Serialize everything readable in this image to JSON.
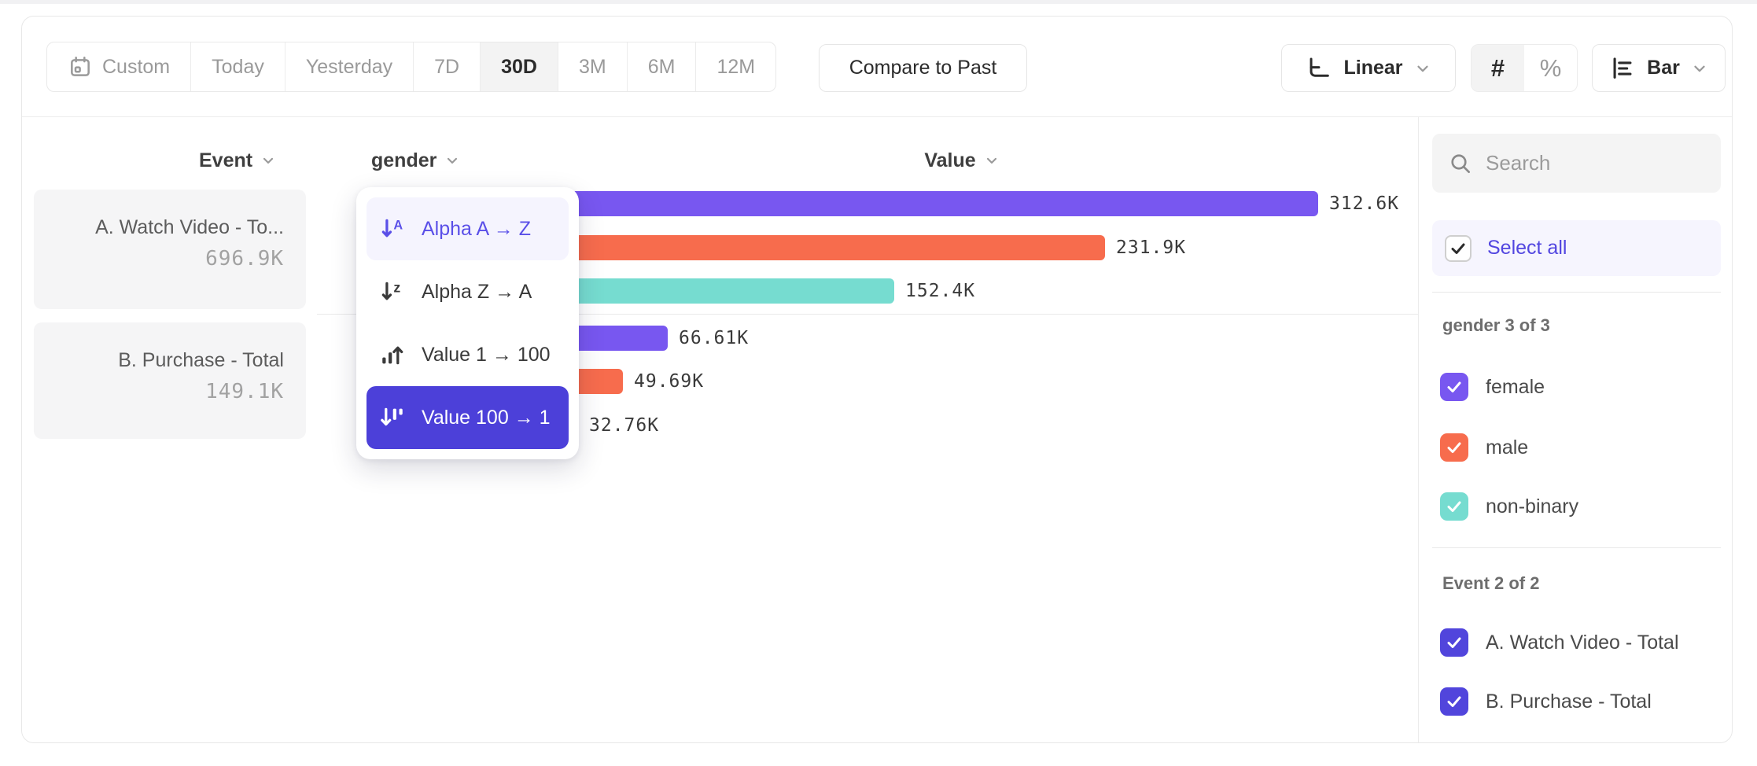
{
  "toolbar": {
    "date_ranges": [
      {
        "label": "Custom",
        "icon": "calendar-icon",
        "selected": false
      },
      {
        "label": "Today",
        "selected": false
      },
      {
        "label": "Yesterday",
        "selected": false
      },
      {
        "label": "7D",
        "selected": false
      },
      {
        "label": "30D",
        "selected": true
      },
      {
        "label": "3M",
        "selected": false
      },
      {
        "label": "6M",
        "selected": false
      },
      {
        "label": "12M",
        "selected": false
      }
    ],
    "compare_label": "Compare to Past",
    "scale": {
      "label": "Linear",
      "icon": "linear-axis-icon"
    },
    "number_format": {
      "options": [
        "#",
        "%"
      ],
      "selected": "#"
    },
    "chart_type": {
      "label": "Bar",
      "icon": "bar-chart-icon"
    }
  },
  "columns": {
    "event": "Event",
    "breakdown": "gender",
    "value": "Value"
  },
  "events_panel": [
    {
      "title": "A. Watch Video - To...",
      "total": "696.9K"
    },
    {
      "title": "B. Purchase - Total",
      "total": "149.1K"
    }
  ],
  "sort_menu": {
    "items": [
      {
        "label": "Alpha A → Z",
        "icon": "sort-alpha-asc-icon",
        "state": "hover"
      },
      {
        "label": "Alpha Z → A",
        "icon": "sort-alpha-desc-icon",
        "state": "normal"
      },
      {
        "label": "Value 1 → 100",
        "icon": "sort-value-asc-icon",
        "state": "normal"
      },
      {
        "label": "Value 100 → 1",
        "icon": "sort-value-desc-icon",
        "state": "selected"
      }
    ]
  },
  "chart_data": {
    "type": "bar",
    "orientation": "horizontal",
    "group_by": "gender",
    "value_axis": "Value",
    "max_value_k": 312.6,
    "groups": [
      {
        "event": "A. Watch Video - Total",
        "total_label": "696.9K",
        "bars": [
          {
            "segment": "female",
            "color": "purple",
            "value_k": 312.6,
            "label": "312.6K"
          },
          {
            "segment": "male",
            "color": "orange",
            "value_k": 231.9,
            "label": "231.9K"
          },
          {
            "segment": "non-binary",
            "color": "teal",
            "value_k": 152.4,
            "label": "152.4K"
          }
        ]
      },
      {
        "event": "B. Purchase - Total",
        "total_label": "149.1K",
        "bars": [
          {
            "segment": "female",
            "color": "purple",
            "value_k": 66.61,
            "label": "66.61K"
          },
          {
            "segment": "male",
            "color": "orange",
            "value_k": 49.69,
            "label": "49.69K"
          },
          {
            "segment": "non-binary",
            "color": "teal",
            "value_k": 32.76,
            "label": "32.76K"
          }
        ]
      }
    ]
  },
  "sidebar": {
    "search_placeholder": "Search",
    "select_all_label": "Select all",
    "groups": [
      {
        "title": "gender 3 of 3",
        "options": [
          {
            "label": "female",
            "color": "purple",
            "checked": true
          },
          {
            "label": "male",
            "color": "orange",
            "checked": true
          },
          {
            "label": "non-binary",
            "color": "teal",
            "checked": true
          }
        ]
      },
      {
        "title": "Event 2 of 2",
        "options": [
          {
            "label": "A. Watch Video - Total",
            "color": "indigo",
            "checked": true
          },
          {
            "label": "B. Purchase - Total",
            "color": "indigo",
            "checked": true
          }
        ]
      }
    ]
  },
  "colors": {
    "purple": "#7857F0",
    "orange": "#F76C4D",
    "teal": "#76DCD0",
    "indigo": "#5145DC",
    "menu_selected": "#4C40D9",
    "accent": "#5246E0",
    "lavender": "#F5F4FE"
  }
}
